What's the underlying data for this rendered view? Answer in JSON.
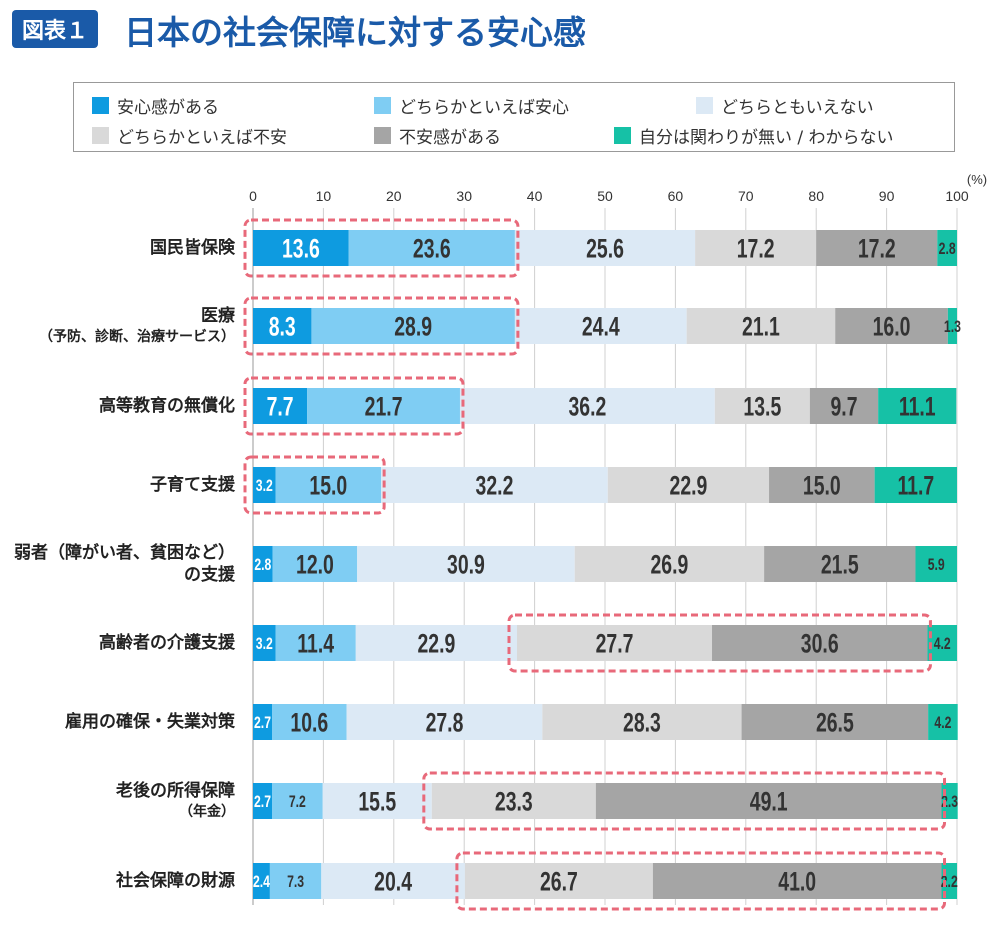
{
  "header": {
    "badge": "図表１",
    "title": "日本の社会保障に対する安心感"
  },
  "chart_data": {
    "type": "bar",
    "orientation": "horizontal-stacked",
    "title": "日本の社会保障に対する安心感",
    "unit_label": "(%)",
    "xlim": [
      0,
      100
    ],
    "ticks": [
      "0",
      "10",
      "20",
      "30",
      "40",
      "50",
      "60",
      "70",
      "80",
      "90",
      "100"
    ],
    "grid": true,
    "legend_position": "top",
    "series": [
      {
        "name": "安心感がある",
        "color": "#0e9be0"
      },
      {
        "name": "どちらかといえば安心",
        "color": "#7fcdf3"
      },
      {
        "name": "どちらともいえない",
        "color": "#dce9f5"
      },
      {
        "name": "どちらかといえば不安",
        "color": "#d9d9d9"
      },
      {
        "name": "不安感がある",
        "color": "#a5a5a5"
      },
      {
        "name": "自分は関わりが無い / わからない",
        "color": "#16c1a6"
      }
    ],
    "categories": [
      {
        "lines": [
          "国民皆保険"
        ],
        "values": [
          13.6,
          23.6,
          25.6,
          17.2,
          17.2,
          2.8
        ],
        "highlight": [
          0,
          1
        ]
      },
      {
        "lines": [
          "医療",
          "（予防、診断、治療サービス）"
        ],
        "values": [
          8.3,
          28.9,
          24.4,
          21.1,
          16.0,
          1.3
        ],
        "highlight": [
          0,
          1
        ]
      },
      {
        "lines": [
          "高等教育の無償化"
        ],
        "values": [
          7.7,
          21.7,
          36.2,
          13.5,
          9.7,
          11.1
        ],
        "highlight": [
          0,
          1
        ]
      },
      {
        "lines": [
          "子育て支援"
        ],
        "values": [
          3.2,
          15.0,
          32.2,
          22.9,
          15.0,
          11.7
        ],
        "highlight": [
          0,
          1
        ]
      },
      {
        "lines": [
          "弱者（障がい者、貧困など）",
          "の支援"
        ],
        "values": [
          2.8,
          12.0,
          30.9,
          26.9,
          21.5,
          5.9
        ],
        "highlight": []
      },
      {
        "lines": [
          "高齢者の介護支援"
        ],
        "values": [
          3.2,
          11.4,
          22.9,
          27.7,
          30.6,
          4.2
        ],
        "highlight": [
          3,
          4
        ]
      },
      {
        "lines": [
          "雇用の確保・失業対策"
        ],
        "values": [
          2.7,
          10.6,
          27.8,
          28.3,
          26.5,
          4.2
        ],
        "highlight": []
      },
      {
        "lines": [
          "老後の所得保障",
          "（年金）"
        ],
        "values": [
          2.7,
          7.2,
          15.5,
          23.3,
          49.1,
          2.3
        ],
        "highlight": [
          3,
          4
        ]
      },
      {
        "lines": [
          "社会保障の財源"
        ],
        "values": [
          2.4,
          7.3,
          20.4,
          26.7,
          41.0,
          2.2
        ],
        "highlight": [
          3,
          4
        ]
      }
    ],
    "highlight_color": "#e8697a"
  }
}
